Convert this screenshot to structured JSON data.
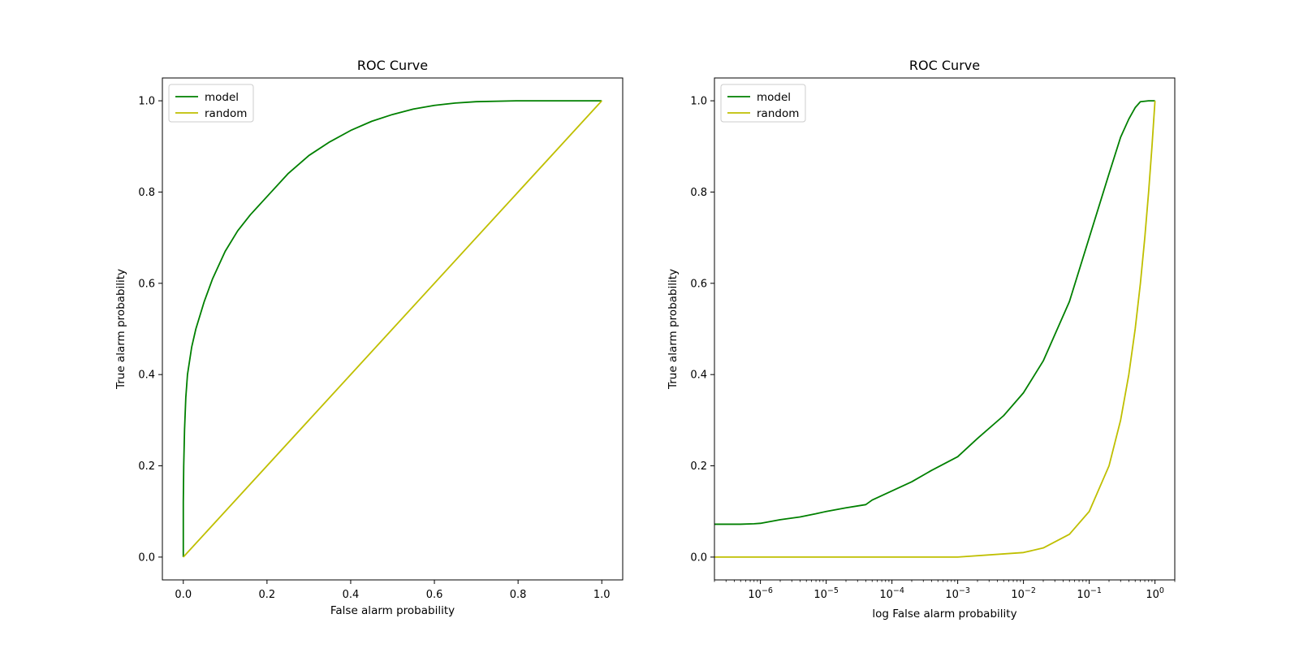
{
  "colors": {
    "model": "#008000",
    "random": "#bfbf00"
  },
  "chart_data": [
    {
      "type": "line",
      "title": "ROC Curve",
      "xlabel": "False alarm probability",
      "ylabel": "True alarm probability",
      "xscale": "linear",
      "xlim": [
        -0.05,
        1.05
      ],
      "ylim": [
        -0.05,
        1.05
      ],
      "xticks": [
        0.0,
        0.2,
        0.4,
        0.6,
        0.8,
        1.0
      ],
      "xtick_labels": [
        "0.0",
        "0.2",
        "0.4",
        "0.6",
        "0.8",
        "1.0"
      ],
      "yticks": [
        0.0,
        0.2,
        0.4,
        0.6,
        0.8,
        1.0
      ],
      "ytick_labels": [
        "0.0",
        "0.2",
        "0.4",
        "0.6",
        "0.8",
        "1.0"
      ],
      "grid": false,
      "legend": "top-left",
      "series": [
        {
          "name": "model",
          "x": [
            0.0,
            0.0,
            0.001,
            0.003,
            0.006,
            0.01,
            0.02,
            0.03,
            0.05,
            0.07,
            0.1,
            0.13,
            0.16,
            0.2,
            0.25,
            0.3,
            0.35,
            0.4,
            0.45,
            0.5,
            0.55,
            0.6,
            0.65,
            0.7,
            0.8,
            0.9,
            1.0
          ],
          "y": [
            0.0,
            0.12,
            0.2,
            0.28,
            0.35,
            0.4,
            0.46,
            0.5,
            0.56,
            0.61,
            0.67,
            0.715,
            0.75,
            0.79,
            0.84,
            0.88,
            0.91,
            0.935,
            0.955,
            0.97,
            0.982,
            0.99,
            0.995,
            0.998,
            1.0,
            1.0,
            1.0
          ]
        },
        {
          "name": "random",
          "x": [
            0.0,
            1.0
          ],
          "y": [
            0.0,
            1.0
          ]
        }
      ]
    },
    {
      "type": "line",
      "title": "ROC Curve",
      "xlabel": "log False alarm probability",
      "ylabel": "True alarm probability",
      "xscale": "log",
      "xlim": [
        2e-07,
        2.0
      ],
      "ylim": [
        -0.05,
        1.05
      ],
      "xticks": [
        1e-06,
        1e-05,
        0.0001,
        0.001,
        0.01,
        0.1,
        1
      ],
      "xtick_labels": [
        {
          "base": "10",
          "exp": "−6"
        },
        {
          "base": "10",
          "exp": "−5"
        },
        {
          "base": "10",
          "exp": "−4"
        },
        {
          "base": "10",
          "exp": "−3"
        },
        {
          "base": "10",
          "exp": "−2"
        },
        {
          "base": "10",
          "exp": "−1"
        },
        {
          "base": "10",
          "exp": "0"
        }
      ],
      "yticks": [
        0.0,
        0.2,
        0.4,
        0.6,
        0.8,
        1.0
      ],
      "ytick_labels": [
        "0.0",
        "0.2",
        "0.4",
        "0.6",
        "0.8",
        "1.0"
      ],
      "grid": false,
      "legend": "top-left",
      "series": [
        {
          "name": "model",
          "x": [
            2e-07,
            5e-07,
            8e-07,
            1e-06,
            2e-06,
            4e-06,
            7e-06,
            1e-05,
            2e-05,
            4e-05,
            5e-05,
            0.0001,
            0.0002,
            0.0004,
            0.001,
            0.002,
            0.005,
            0.01,
            0.02,
            0.05,
            0.1,
            0.2,
            0.3,
            0.4,
            0.5,
            0.6,
            0.8,
            1.0
          ],
          "y": [
            0.072,
            0.072,
            0.073,
            0.074,
            0.082,
            0.088,
            0.095,
            0.1,
            0.108,
            0.115,
            0.125,
            0.145,
            0.165,
            0.19,
            0.22,
            0.26,
            0.31,
            0.36,
            0.43,
            0.56,
            0.7,
            0.84,
            0.92,
            0.96,
            0.985,
            0.998,
            1.0,
            1.0
          ]
        },
        {
          "name": "random",
          "x": [
            2e-07,
            1e-06,
            1e-05,
            0.0001,
            0.001,
            0.01,
            0.02,
            0.05,
            0.1,
            0.2,
            0.3,
            0.4,
            0.5,
            0.6,
            0.7,
            0.8,
            0.9,
            1.0
          ],
          "y": [
            0.0,
            0.0,
            0.0,
            0.0,
            0.0,
            0.01,
            0.02,
            0.05,
            0.1,
            0.2,
            0.3,
            0.4,
            0.5,
            0.6,
            0.7,
            0.8,
            0.9,
            1.0
          ]
        }
      ]
    }
  ]
}
